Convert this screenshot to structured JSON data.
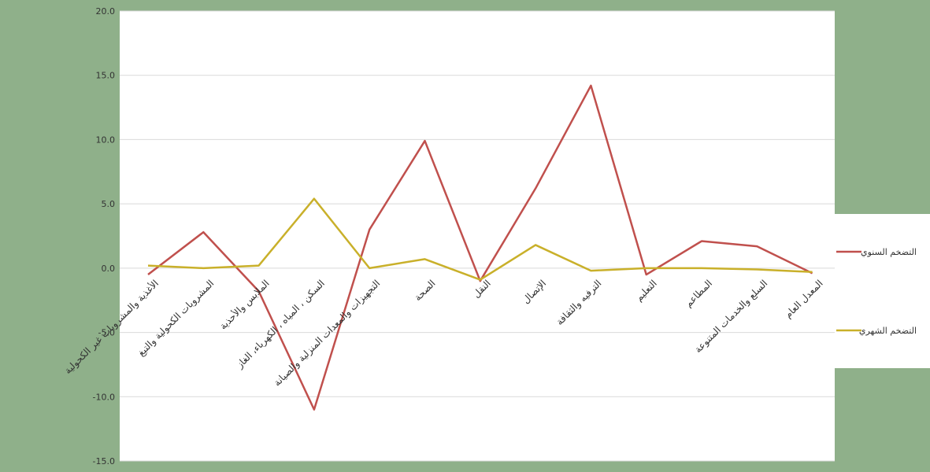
{
  "chart_data": {
    "type": "line",
    "title": "",
    "xlabel": "",
    "ylabel": "",
    "ylim": [
      -15,
      20
    ],
    "yticks": [
      "20.0",
      "15.0",
      "10.0",
      "5.0",
      "0.0",
      "-5.0",
      "-10.0",
      "-15.0"
    ],
    "grid": true,
    "legend_position": "right",
    "categories": [
      "الأغذية والمشروبات غير الكحولية",
      "المشروبات الكحولية والتبغ",
      "الملابس والأحذية",
      "السكن ، المياه ، الكهرباء، الغاز",
      "التجهيزات والمعدات المنزلية والصيانة",
      "الصحة",
      "النقل",
      "الإتصال",
      "الترفيه والثقافة",
      "التعليم",
      "المطاعم",
      "السلع والخدمات المتنوعة",
      "المعدل العام"
    ],
    "series": [
      {
        "name": "التضخم السنوي",
        "color": "#c0504d",
        "values": [
          -0.5,
          2.8,
          -1.8,
          -11.0,
          3.0,
          9.9,
          -1.0,
          6.2,
          14.2,
          -0.5,
          2.1,
          1.7,
          -0.4
        ]
      },
      {
        "name": "التضخم الشهري",
        "color": "#c9b02a",
        "values": [
          0.2,
          0.0,
          0.2,
          5.4,
          0.0,
          0.7,
          -0.9,
          1.8,
          -0.2,
          0.0,
          0.0,
          -0.1,
          -0.3
        ]
      }
    ]
  }
}
